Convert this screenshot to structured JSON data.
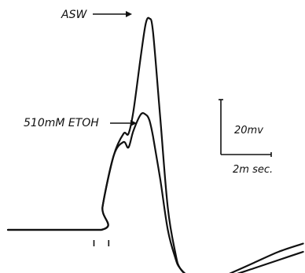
{
  "chart_data": {
    "type": "line",
    "title": "",
    "xlabel": "",
    "ylabel": "",
    "scale_bar": {
      "voltage_label": "20mv",
      "time_label": "2m sec.",
      "voltage_mv": 20,
      "time_ms": 2
    },
    "series": [
      {
        "name": "ASW",
        "x": [
          0,
          3.8,
          3.85,
          4.3,
          4.7,
          4.9,
          5.1,
          5.4,
          5.6,
          5.75,
          5.9,
          6.2,
          6.5,
          6.8,
          7.0,
          7.5,
          8.0,
          8.5,
          9.0,
          10.0,
          11.0,
          12.0
        ],
        "y": [
          0,
          0,
          8.5,
          27,
          35,
          35,
          43,
          63,
          75,
          77,
          72,
          40,
          8,
          -8,
          -14,
          -18,
          -19,
          -18,
          -16,
          -12,
          -8,
          -5
        ]
      },
      {
        "name": "510mM ETOH",
        "x": [
          0,
          3.8,
          3.85,
          4.3,
          4.7,
          4.9,
          5.1,
          5.4,
          5.6,
          5.75,
          5.9,
          6.2,
          6.5,
          6.8,
          7.0,
          7.5,
          8.0,
          8.5,
          9.0,
          10.0,
          11.0,
          12.0
        ],
        "y": [
          0,
          0,
          8.5,
          27,
          32,
          30,
          36,
          42,
          42,
          40,
          34,
          18,
          0,
          -10,
          -14,
          -18,
          -20,
          -19,
          -17,
          -14,
          -11,
          -8
        ]
      }
    ],
    "stimulus_marks_ms": [
      3.5,
      4.1
    ]
  }
}
